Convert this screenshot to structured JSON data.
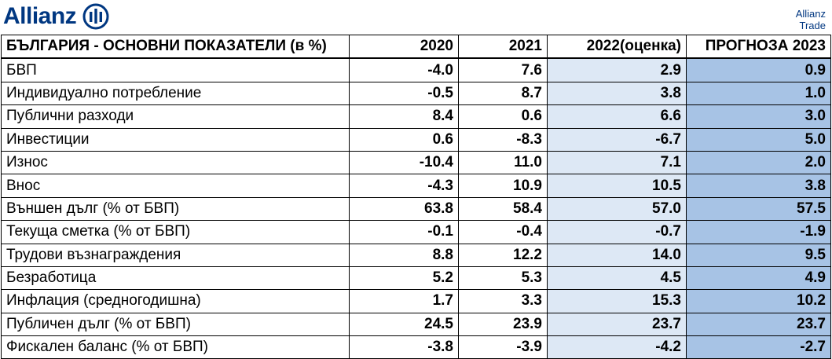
{
  "brand": {
    "logo_text": "Allianz",
    "trade_line1": "Allianz",
    "trade_line2": "Trade"
  },
  "colors": {
    "brand_blue": "#003781",
    "estimate_fill": "#dde8f5",
    "forecast_fill": "#a7c3e5"
  },
  "table": {
    "headers": [
      "БЪЛГАРИЯ - ОСНОВНИ ПОКАЗАТЕЛИ (в %)",
      "2020",
      "2021",
      "2022(оценка)",
      "ПРОГНОЗА 2023"
    ],
    "rows": [
      {
        "label": "БВП",
        "values": [
          "-4.0",
          "7.6",
          "2.9",
          "0.9"
        ]
      },
      {
        "label": "Индивидуално потребление",
        "values": [
          "-0.5",
          "8.7",
          "3.8",
          "1.0"
        ]
      },
      {
        "label": "Публични разходи",
        "values": [
          "8.4",
          "0.6",
          "6.6",
          "3.0"
        ]
      },
      {
        "label": "Инвестиции",
        "values": [
          "0.6",
          "-8.3",
          "-6.7",
          "5.0"
        ]
      },
      {
        "label": "Износ",
        "values": [
          "-10.4",
          "11.0",
          "7.1",
          "2.0"
        ]
      },
      {
        "label": "Внос",
        "values": [
          "-4.3",
          "10.9",
          "10.5",
          "3.8"
        ]
      },
      {
        "label": "Външен дълг (% от БВП)",
        "values": [
          "63.8",
          "58.4",
          "57.0",
          "57.5"
        ]
      },
      {
        "label": "Текуща сметка (% от БВП)",
        "values": [
          "-0.1",
          "-0.4",
          "-0.7",
          "-1.9"
        ]
      },
      {
        "label": "Трудови възнаграждения",
        "values": [
          "8.8",
          "12.2",
          "14.0",
          "9.5"
        ]
      },
      {
        "label": "Безработица",
        "values": [
          "5.2",
          "5.3",
          "4.5",
          "4.9"
        ]
      },
      {
        "label": "Инфлация (средногодишна)",
        "values": [
          "1.7",
          "3.3",
          "15.3",
          "10.2"
        ]
      },
      {
        "label": "Публичен дълг (% от БВП)",
        "values": [
          "24.5",
          "23.9",
          "23.7",
          "23.7"
        ]
      },
      {
        "label": "Фискален баланс (% от БВП)",
        "values": [
          "-3.8",
          "-3.9",
          "-4.2",
          "-2.7"
        ]
      }
    ]
  }
}
